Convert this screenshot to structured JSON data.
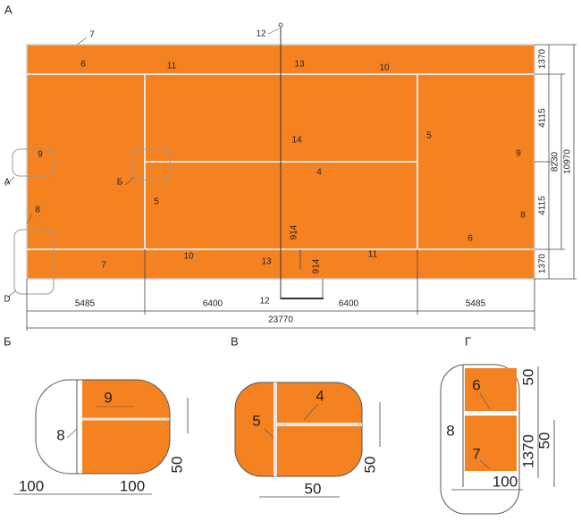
{
  "main": {
    "label": "А",
    "callouts": [
      "7",
      "12",
      "13",
      "6",
      "11",
      "10",
      "14",
      "4",
      "5",
      "9",
      "9",
      "А",
      "Б",
      "8",
      "5",
      "8",
      "10",
      "7",
      "11",
      "6",
      "13",
      "12",
      "D"
    ],
    "dimensions": [
      1370,
      4115,
      8230,
      10970,
      4115,
      1370,
      914,
      914,
      5485,
      6400,
      6400,
      5485,
      23770
    ]
  },
  "details": [
    {
      "label": "Б",
      "callouts": [
        "9",
        "8"
      ],
      "dimensions": [
        100,
        100,
        50
      ]
    },
    {
      "label": "В",
      "callouts": [
        "4",
        "5"
      ],
      "dimensions": [
        50,
        50
      ]
    },
    {
      "label": "Г",
      "callouts": [
        "6",
        "8",
        "7"
      ],
      "dimensions": [
        50,
        1370,
        50,
        100
      ]
    }
  ]
}
